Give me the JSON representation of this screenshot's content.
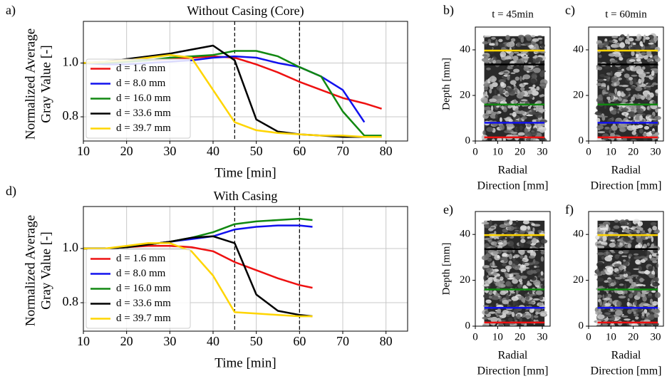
{
  "chart_data": [
    {
      "type": "line",
      "label": "a)",
      "title": "Without Casing (Core)",
      "xlabel": "Time [min]",
      "ylabel": [
        "Normalized Average",
        "Gray Value [-]"
      ],
      "x": [
        10,
        15,
        20,
        25,
        30,
        35,
        40,
        45,
        50,
        55,
        60,
        65,
        70,
        75,
        79
      ],
      "series": [
        {
          "name": "d = 1.6 mm",
          "color": "#ee1111",
          "values": [
            1.0,
            1.0,
            1.005,
            1.01,
            1.015,
            1.02,
            1.025,
            1.02,
            0.995,
            0.965,
            0.93,
            0.9,
            0.87,
            0.85,
            0.83
          ]
        },
        {
          "name": "d = 8.0 mm",
          "color": "#1111ee",
          "values": [
            1.0,
            0.995,
            0.995,
            1.0,
            1.005,
            1.01,
            1.02,
            1.025,
            1.02,
            1.0,
            0.985,
            0.95,
            0.9,
            0.78,
            null
          ]
        },
        {
          "name": "d = 16.0 mm",
          "color": "#118811",
          "values": [
            1.0,
            1.0,
            1.005,
            1.01,
            1.02,
            1.025,
            1.03,
            1.045,
            1.045,
            1.025,
            0.985,
            0.95,
            0.82,
            0.73,
            0.73
          ]
        },
        {
          "name": "d = 33.6 mm",
          "color": "#000000",
          "values": [
            1.0,
            1.005,
            1.015,
            1.025,
            1.035,
            1.05,
            1.065,
            1.01,
            0.79,
            0.745,
            0.735,
            0.73,
            0.725,
            0.725,
            0.725
          ]
        },
        {
          "name": "d = 39.7 mm",
          "color": "#ffd500",
          "values": [
            1.0,
            1.005,
            1.01,
            1.02,
            1.03,
            1.02,
            0.9,
            0.78,
            0.75,
            0.74,
            0.735,
            0.73,
            0.73,
            0.725,
            0.725
          ]
        }
      ],
      "xlim": [
        10,
        85
      ],
      "ylim": [
        0.71,
        1.155
      ],
      "xticks": [
        10,
        20,
        30,
        40,
        50,
        60,
        70,
        80
      ],
      "yticks": [
        0.8,
        {
          "value": 1,
          "label": "1.0"
        }
      ],
      "grid": true,
      "vlines": [
        45,
        60
      ],
      "legend": "lower left"
    },
    {
      "type": "image",
      "label": "b)",
      "title": "t = 45min",
      "xlabel": [
        "Radial",
        "Direction [mm]"
      ],
      "ylabel": "Depth [mm]",
      "xlim": [
        0,
        33.5
      ],
      "ylim": [
        0,
        50
      ],
      "xticks": [
        0,
        10,
        20,
        30
      ],
      "yticks": [
        0,
        20,
        40
      ],
      "image_extent": [
        4,
        31,
        0,
        46
      ],
      "hlines": [
        {
          "value": 1.6,
          "color": "#ee1111"
        },
        {
          "value": 8.0,
          "color": "#1111ee"
        },
        {
          "value": 16.0,
          "color": "#118811"
        },
        {
          "value": 33.6,
          "color": "#000000"
        },
        {
          "value": 39.7,
          "color": "#ffd500"
        }
      ]
    },
    {
      "type": "image",
      "label": "c)",
      "title": "t = 60min",
      "xlabel": [
        "Radial",
        "Direction [mm]"
      ],
      "xlim": [
        0,
        33.5
      ],
      "ylim": [
        0,
        50
      ],
      "xticks": [
        0,
        10,
        20,
        30
      ],
      "yticks": [
        0,
        20,
        40
      ],
      "image_extent": [
        4,
        31,
        0,
        46
      ],
      "hlines": [
        {
          "value": 1.6,
          "color": "#ee1111"
        },
        {
          "value": 8.0,
          "color": "#1111ee"
        },
        {
          "value": 16.0,
          "color": "#118811"
        },
        {
          "value": 33.6,
          "color": "#000000"
        },
        {
          "value": 39.7,
          "color": "#ffd500"
        }
      ]
    },
    {
      "type": "line",
      "label": "d)",
      "title": "With Casing",
      "xlabel": "Time [min]",
      "ylabel": [
        "Normalized Average",
        "Gray Value [-]"
      ],
      "x": [
        10,
        15,
        20,
        25,
        30,
        35,
        40,
        45,
        50,
        55,
        60,
        63
      ],
      "series": [
        {
          "name": "d = 1.6 mm",
          "color": "#ee1111",
          "values": [
            1.0,
            1.0,
            1.005,
            1.01,
            1.01,
            1.005,
            0.99,
            0.95,
            0.92,
            0.89,
            0.865,
            0.855
          ]
        },
        {
          "name": "d = 8.0 mm",
          "color": "#1111ee",
          "values": [
            1.0,
            1.0,
            1.005,
            1.015,
            1.025,
            1.035,
            1.045,
            1.07,
            1.08,
            1.085,
            1.085,
            1.08
          ]
        },
        {
          "name": "d = 16.0 mm",
          "color": "#118811",
          "values": [
            1.0,
            1.0,
            1.005,
            1.015,
            1.025,
            1.04,
            1.06,
            1.09,
            1.1,
            1.105,
            1.11,
            1.105
          ]
        },
        {
          "name": "d = 33.6 mm",
          "color": "#000000",
          "values": [
            1.0,
            1.0,
            1.005,
            1.015,
            1.025,
            1.04,
            1.045,
            1.02,
            0.83,
            0.77,
            0.755,
            0.75
          ]
        },
        {
          "name": "d = 39.7 mm",
          "color": "#ffd500",
          "values": [
            1.0,
            1.0,
            1.01,
            1.02,
            1.02,
            0.99,
            0.9,
            0.765,
            0.76,
            0.755,
            0.75,
            0.75
          ]
        }
      ],
      "xlim": [
        10,
        85
      ],
      "ylim": [
        0.695,
        1.155
      ],
      "xticks": [
        10,
        20,
        30,
        40,
        50,
        60,
        70,
        80
      ],
      "yticks": [
        0.8,
        {
          "value": 1,
          "label": "1.0"
        }
      ],
      "grid": true,
      "vlines": [
        45,
        60
      ],
      "legend": "lower left"
    },
    {
      "type": "image",
      "label": "e)",
      "xlabel": [
        "Radial",
        "Direction [mm]"
      ],
      "ylabel": "Depth [mm]",
      "xlim": [
        0,
        33.5
      ],
      "ylim": [
        0,
        50
      ],
      "xticks": [
        0,
        10,
        20,
        30
      ],
      "yticks": [
        0,
        20,
        40
      ],
      "image_extent": [
        4,
        31,
        0,
        46
      ],
      "hlines": [
        {
          "value": 1.6,
          "color": "#ee1111"
        },
        {
          "value": 8.0,
          "color": "#1111ee"
        },
        {
          "value": 16.0,
          "color": "#118811"
        },
        {
          "value": 33.6,
          "color": "#000000"
        },
        {
          "value": 39.7,
          "color": "#ffd500"
        }
      ]
    },
    {
      "type": "image",
      "label": "f)",
      "xlabel": [
        "Radial",
        "Direction [mm]"
      ],
      "xlim": [
        0,
        33.5
      ],
      "ylim": [
        0,
        50
      ],
      "xticks": [
        0,
        10,
        20,
        30
      ],
      "yticks": [
        0,
        20,
        40
      ],
      "image_extent": [
        4,
        31,
        0,
        46
      ],
      "hlines": [
        {
          "value": 1.6,
          "color": "#ee1111"
        },
        {
          "value": 8.0,
          "color": "#1111ee"
        },
        {
          "value": 16.0,
          "color": "#118811"
        },
        {
          "value": 33.6,
          "color": "#000000"
        },
        {
          "value": 39.7,
          "color": "#ffd500"
        }
      ]
    }
  ]
}
